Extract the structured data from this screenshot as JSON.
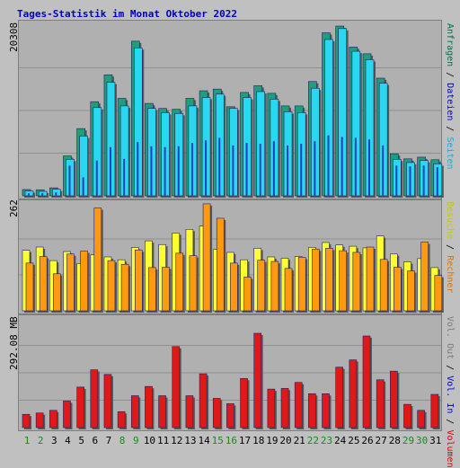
{
  "title": "Tages-Statistik im Monat Oktober 2022",
  "axis_labels": {
    "top": "20308",
    "middle": "262",
    "bottom": "292.08 MB"
  },
  "right_labels": {
    "top": [
      {
        "text": "Anfragen",
        "color": "#006e46"
      },
      {
        "text": " / ",
        "color": "#000000"
      },
      {
        "text": "Dateien",
        "color": "#0000c8"
      },
      {
        "text": " / ",
        "color": "#000000"
      },
      {
        "text": "Seiten",
        "color": "#00b4d8"
      }
    ],
    "middle": [
      {
        "text": "Besuche",
        "color": "#c8c800"
      },
      {
        "text": " / ",
        "color": "#000000"
      },
      {
        "text": "Rechner",
        "color": "#e07000"
      }
    ],
    "bottom": [
      {
        "text": "Vol. Out",
        "color": "#7a7a7a"
      },
      {
        "text": " / ",
        "color": "#000000"
      },
      {
        "text": "Vol. In",
        "color": "#0000c8"
      },
      {
        "text": " / ",
        "color": "#000000"
      },
      {
        "text": "Volumen",
        "color": "#e00000"
      }
    ]
  },
  "colors": {
    "anfragen": "#1e9e7a",
    "dateien": "#28d8f0",
    "seiten": "#2040c0",
    "besuche": "#ffff30",
    "rechner": "#ff9a10",
    "volumen": "#e01818",
    "weekday_label": "#000000",
    "weekend_label": "#1a8a1a"
  },
  "chart_data": [
    {
      "type": "bar",
      "title": "Anfragen / Dateien / Seiten",
      "categories": [
        "1",
        "2",
        "3",
        "4",
        "5",
        "6",
        "7",
        "8",
        "9",
        "10",
        "11",
        "12",
        "13",
        "14",
        "15",
        "16",
        "17",
        "18",
        "19",
        "20",
        "21",
        "22",
        "23",
        "24",
        "25",
        "26",
        "27",
        "28",
        "29",
        "30",
        "31"
      ],
      "ylim": [
        0,
        20308
      ],
      "series": [
        {
          "name": "Anfragen",
          "values": [
            750,
            720,
            950,
            4750,
            8000,
            11200,
            14400,
            11600,
            18400,
            11000,
            10400,
            10300,
            11600,
            12500,
            12700,
            10600,
            12300,
            13100,
            12200,
            10700,
            10700,
            13600,
            19400,
            20200,
            17700,
            16900,
            14000,
            5000,
            4400,
            4600,
            4300
          ]
        },
        {
          "name": "Dateien",
          "values": [
            580,
            530,
            780,
            4350,
            7100,
            10500,
            13500,
            10700,
            17600,
            10400,
            9900,
            9800,
            10700,
            11700,
            12100,
            10400,
            11700,
            12400,
            11500,
            10000,
            9900,
            12800,
            18600,
            19900,
            17200,
            16200,
            13400,
            4350,
            3960,
            4200,
            3800
          ]
        },
        {
          "name": "Seiten",
          "values": [
            300,
            320,
            400,
            3600,
            2200,
            4200,
            5800,
            4400,
            6400,
            5900,
            5800,
            5900,
            6300,
            6600,
            6900,
            6000,
            6300,
            6200,
            6500,
            6000,
            6200,
            6500,
            7200,
            7000,
            6900,
            6700,
            6000,
            3600,
            3500,
            3600,
            3400
          ]
        }
      ]
    },
    {
      "type": "bar",
      "title": "Besuche / Rechner",
      "categories": [
        "1",
        "2",
        "3",
        "4",
        "5",
        "6",
        "7",
        "8",
        "9",
        "10",
        "11",
        "12",
        "13",
        "14",
        "15",
        "16",
        "17",
        "18",
        "19",
        "20",
        "21",
        "22",
        "23",
        "24",
        "25",
        "26",
        "27",
        "28",
        "29",
        "30",
        "31"
      ],
      "ylim": [
        0,
        262
      ],
      "series": [
        {
          "name": "Besuche",
          "values": [
            147,
            155,
            122,
            144,
            115,
            136,
            131,
            124,
            154,
            170,
            161,
            189,
            198,
            206,
            149,
            142,
            124,
            152,
            131,
            128,
            132,
            154,
            166,
            160,
            157,
            153,
            182,
            138,
            119,
            127,
            105
          ]
        },
        {
          "name": "Rechner",
          "values": [
            116,
            132,
            90,
            138,
            145,
            250,
            122,
            113,
            148,
            105,
            106,
            140,
            134,
            260,
            225,
            116,
            82,
            123,
            120,
            103,
            130,
            150,
            152,
            146,
            142,
            155,
            125,
            106,
            97,
            167,
            86
          ]
        }
      ]
    },
    {
      "type": "bar",
      "title": "Volumen / Vol. In / Vol. Out",
      "categories": [
        "1",
        "2",
        "3",
        "4",
        "5",
        "6",
        "7",
        "8",
        "9",
        "10",
        "11",
        "12",
        "13",
        "14",
        "15",
        "16",
        "17",
        "18",
        "19",
        "20",
        "21",
        "22",
        "23",
        "24",
        "25",
        "26",
        "27",
        "28",
        "29",
        "30",
        "31"
      ],
      "ylim": [
        0,
        330
      ],
      "series": [
        {
          "name": "Volumen",
          "values": [
            40,
            44,
            52,
            80,
            122,
            174,
            160,
            48,
            96,
            124,
            96,
            244,
            96,
            162,
            88,
            72,
            148,
            284,
            116,
            118,
            136,
            102,
            102,
            182,
            204,
            276,
            144,
            170,
            70,
            52,
            100
          ]
        },
        {
          "name": "Vol. In",
          "values": [
            0,
            0,
            0,
            0,
            0,
            0,
            0,
            0,
            0,
            0,
            0,
            0,
            0,
            0,
            0,
            0,
            0,
            0,
            0,
            0,
            0,
            0,
            0,
            0,
            0,
            0,
            0,
            0,
            0,
            0,
            0
          ]
        },
        {
          "name": "Vol. Out",
          "values": [
            0,
            0,
            0,
            0,
            0,
            0,
            0,
            0,
            0,
            0,
            0,
            0,
            0,
            0,
            0,
            0,
            0,
            0,
            0,
            0,
            0,
            0,
            0,
            0,
            0,
            0,
            0,
            0,
            0,
            0,
            0
          ]
        }
      ]
    }
  ],
  "weekend_days": [
    1,
    2,
    8,
    9,
    15,
    16,
    22,
    23,
    29,
    30
  ]
}
